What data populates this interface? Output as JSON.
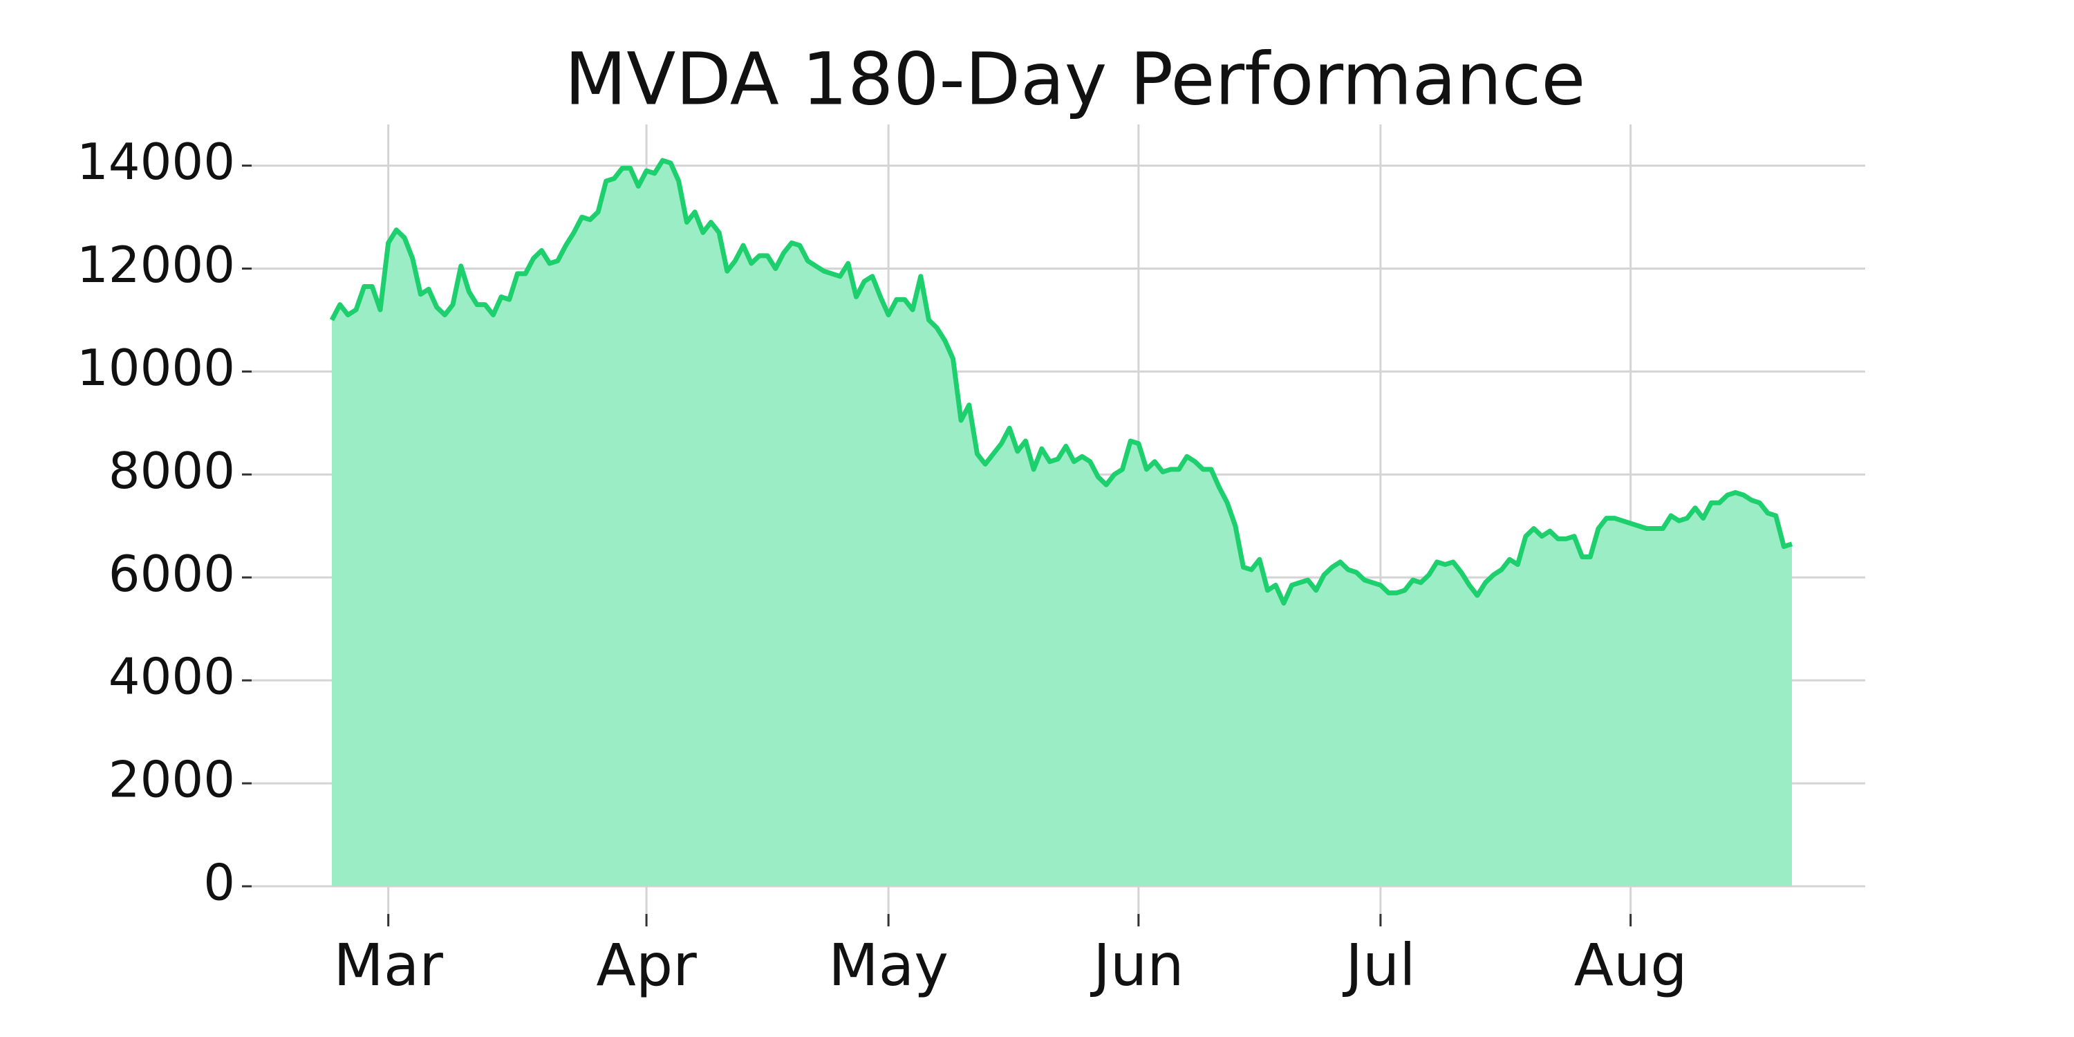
{
  "chart_data": {
    "type": "area",
    "title": "MVDA 180-Day Performance",
    "categories": [
      null,
      null,
      null,
      null,
      null,
      null,
      null,
      "Mar",
      null,
      null,
      null,
      null,
      null,
      null,
      null,
      null,
      null,
      null,
      null,
      null,
      null,
      null,
      null,
      null,
      null,
      null,
      null,
      null,
      null,
      null,
      null,
      null,
      null,
      null,
      null,
      null,
      null,
      null,
      null,
      "Apr",
      null,
      null,
      null,
      null,
      null,
      null,
      null,
      null,
      null,
      null,
      null,
      null,
      null,
      null,
      null,
      null,
      null,
      null,
      null,
      null,
      null,
      null,
      null,
      null,
      null,
      null,
      null,
      null,
      null,
      "May",
      null,
      null,
      null,
      null,
      null,
      null,
      null,
      null,
      null,
      null,
      null,
      null,
      null,
      null,
      null,
      null,
      null,
      null,
      null,
      null,
      null,
      null,
      null,
      null,
      null,
      null,
      null,
      null,
      null,
      null,
      "Jun",
      null,
      null,
      null,
      null,
      null,
      null,
      null,
      null,
      null,
      null,
      null,
      null,
      null,
      null,
      null,
      null,
      null,
      null,
      null,
      null,
      null,
      null,
      null,
      null,
      null,
      null,
      null,
      null,
      null,
      "Jul",
      null,
      null,
      null,
      null,
      null,
      null,
      null,
      null,
      null,
      null,
      null,
      null,
      null,
      null,
      null,
      null,
      null,
      null,
      null,
      null,
      null,
      null,
      null,
      null,
      null,
      null,
      null,
      null,
      null,
      null,
      "Aug",
      null,
      null,
      null,
      null,
      null,
      null,
      null,
      null,
      null,
      null,
      null,
      null,
      null,
      null,
      null,
      null,
      null,
      null,
      null,
      null
    ],
    "values": [
      11000,
      11300,
      11100,
      11200,
      11650,
      11650,
      11200,
      12500,
      12750,
      12600,
      12200,
      11500,
      11600,
      11250,
      11100,
      11300,
      12050,
      11550,
      11300,
      11300,
      11100,
      11450,
      11400,
      11900,
      11900,
      12200,
      12350,
      12100,
      12150,
      12450,
      12700,
      13000,
      12950,
      13100,
      13700,
      13750,
      13950,
      13950,
      13600,
      13900,
      13850,
      14100,
      14050,
      13700,
      12900,
      13100,
      12700,
      12900,
      12700,
      11950,
      12150,
      12450,
      12100,
      12250,
      12250,
      12000,
      12300,
      12500,
      12450,
      12150,
      12050,
      11950,
      11900,
      11850,
      12100,
      11450,
      11750,
      11850,
      11450,
      11100,
      11400,
      11400,
      11200,
      11850,
      11000,
      10850,
      10600,
      10250,
      9050,
      9350,
      8400,
      8200,
      8400,
      8600,
      8900,
      8450,
      8650,
      8100,
      8500,
      8250,
      8300,
      8550,
      8250,
      8350,
      8250,
      7950,
      7800,
      8000,
      8100,
      8650,
      8600,
      8100,
      8250,
      8050,
      8100,
      8100,
      8350,
      8250,
      8100,
      8100,
      7750,
      7450,
      7000,
      6200,
      6150,
      6350,
      5750,
      5850,
      5500,
      5850,
      5900,
      5950,
      5750,
      6050,
      6200,
      6300,
      6150,
      6100,
      5950,
      5900,
      5850,
      5700,
      5700,
      5750,
      5950,
      5900,
      6050,
      6300,
      6250,
      6300,
      6100,
      5850,
      5650,
      5900,
      6050,
      6150,
      6350,
      6250,
      6800,
      6950,
      6800,
      6900,
      6750,
      6750,
      6800,
      6400,
      6400,
      6950,
      7150,
      7150,
      7100,
      7050,
      7000,
      6950,
      6950,
      6950,
      7200,
      7100,
      7150,
      7350,
      7150,
      7450,
      7450,
      7600,
      7650,
      7600,
      7500,
      7450,
      7250,
      7200,
      6600,
      6650
    ],
    "color": "#1ecf6e",
    "fill_color": "#9aedc4",
    "ylim": [
      0,
      14800
    ],
    "yticks": [
      0,
      2000,
      4000,
      6000,
      8000,
      10000,
      12000,
      14000
    ],
    "grid": true
  }
}
